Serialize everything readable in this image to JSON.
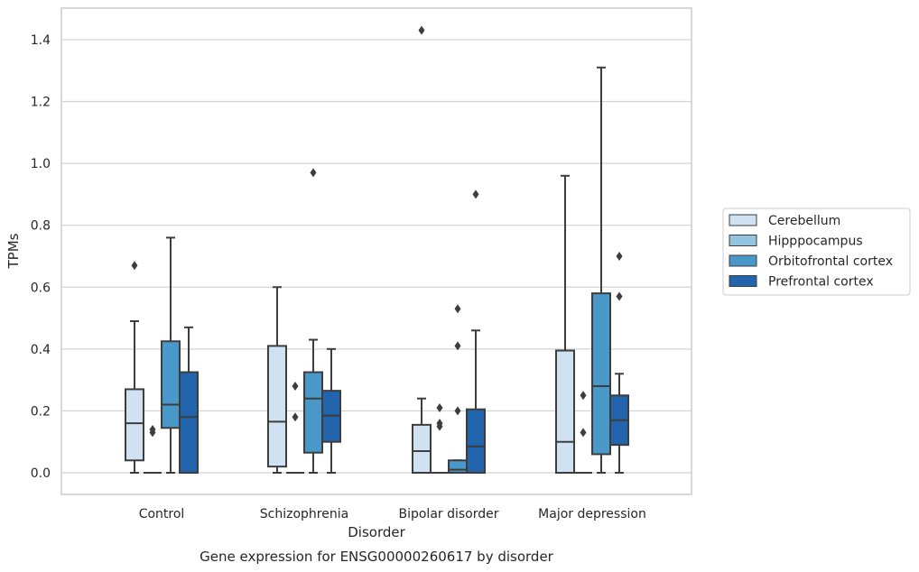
{
  "chart_data": {
    "type": "box",
    "xlabel": "Disorder",
    "ylabel": "TPMs",
    "caption": "Gene expression for ENSG00000260617 by disorder",
    "ylim": [
      -0.07,
      1.5
    ],
    "yticks": [
      "0.0",
      "0.2",
      "0.4",
      "0.6",
      "0.8",
      "1.0",
      "1.2",
      "1.4"
    ],
    "grid": "horizontal",
    "legend_position": "right",
    "categories": [
      "Control",
      "Schizophrenia",
      "Bipolar disorder",
      "Major depression"
    ],
    "series": [
      {
        "name": "Cerebellum",
        "color": "#d0e1f2",
        "boxes": [
          {
            "min": 0.0,
            "q1": 0.04,
            "median": 0.16,
            "q3": 0.27,
            "max": 0.49,
            "outliers": [
              0.67
            ]
          },
          {
            "min": 0.0,
            "q1": 0.02,
            "median": 0.165,
            "q3": 0.41,
            "max": 0.6,
            "outliers": []
          },
          {
            "min": 0.0,
            "q1": 0.0,
            "median": 0.07,
            "q3": 0.155,
            "max": 0.24,
            "outliers": [
              1.43
            ]
          },
          {
            "min": 0.0,
            "q1": 0.0,
            "median": 0.1,
            "q3": 0.395,
            "max": 0.96,
            "outliers": []
          }
        ]
      },
      {
        "name": "Hipppocampus",
        "color": "#94c4df",
        "boxes": [
          {
            "min": 0.0,
            "q1": 0.0,
            "median": 0.0,
            "q3": 0.0,
            "max": 0.0,
            "outliers": [
              0.13,
              0.14
            ]
          },
          {
            "min": 0.0,
            "q1": 0.0,
            "median": 0.0,
            "q3": 0.0,
            "max": 0.0,
            "outliers": [
              0.18,
              0.28
            ]
          },
          {
            "min": 0.0,
            "q1": 0.0,
            "median": 0.0,
            "q3": 0.0,
            "max": 0.0,
            "outliers": [
              0.15,
              0.16,
              0.21
            ]
          },
          {
            "min": 0.0,
            "q1": 0.0,
            "median": 0.0,
            "q3": 0.0,
            "max": 0.0,
            "outliers": [
              0.13,
              0.25
            ]
          }
        ]
      },
      {
        "name": "Orbitofrontal cortex",
        "color": "#4a98c9",
        "boxes": [
          {
            "min": 0.0,
            "q1": 0.145,
            "median": 0.22,
            "q3": 0.425,
            "max": 0.76,
            "outliers": []
          },
          {
            "min": 0.0,
            "q1": 0.065,
            "median": 0.24,
            "q3": 0.325,
            "max": 0.43,
            "outliers": [
              0.97
            ]
          },
          {
            "min": 0.0,
            "q1": 0.0,
            "median": 0.01,
            "q3": 0.04,
            "max": 0.04,
            "outliers": [
              0.2,
              0.41,
              0.53
            ]
          },
          {
            "min": 0.0,
            "q1": 0.06,
            "median": 0.28,
            "q3": 0.58,
            "max": 1.31,
            "outliers": []
          }
        ]
      },
      {
        "name": "Prefrontal cortex",
        "color": "#2265ac",
        "boxes": [
          {
            "min": 0.0,
            "q1": 0.0,
            "median": 0.18,
            "q3": 0.325,
            "max": 0.47,
            "outliers": []
          },
          {
            "min": 0.0,
            "q1": 0.1,
            "median": 0.185,
            "q3": 0.265,
            "max": 0.4,
            "outliers": []
          },
          {
            "min": 0.0,
            "q1": 0.0,
            "median": 0.085,
            "q3": 0.205,
            "max": 0.46,
            "outliers": [
              0.9
            ]
          },
          {
            "min": 0.0,
            "q1": 0.09,
            "median": 0.17,
            "q3": 0.25,
            "max": 0.32,
            "outliers": [
              0.57,
              0.7
            ]
          }
        ]
      }
    ]
  }
}
